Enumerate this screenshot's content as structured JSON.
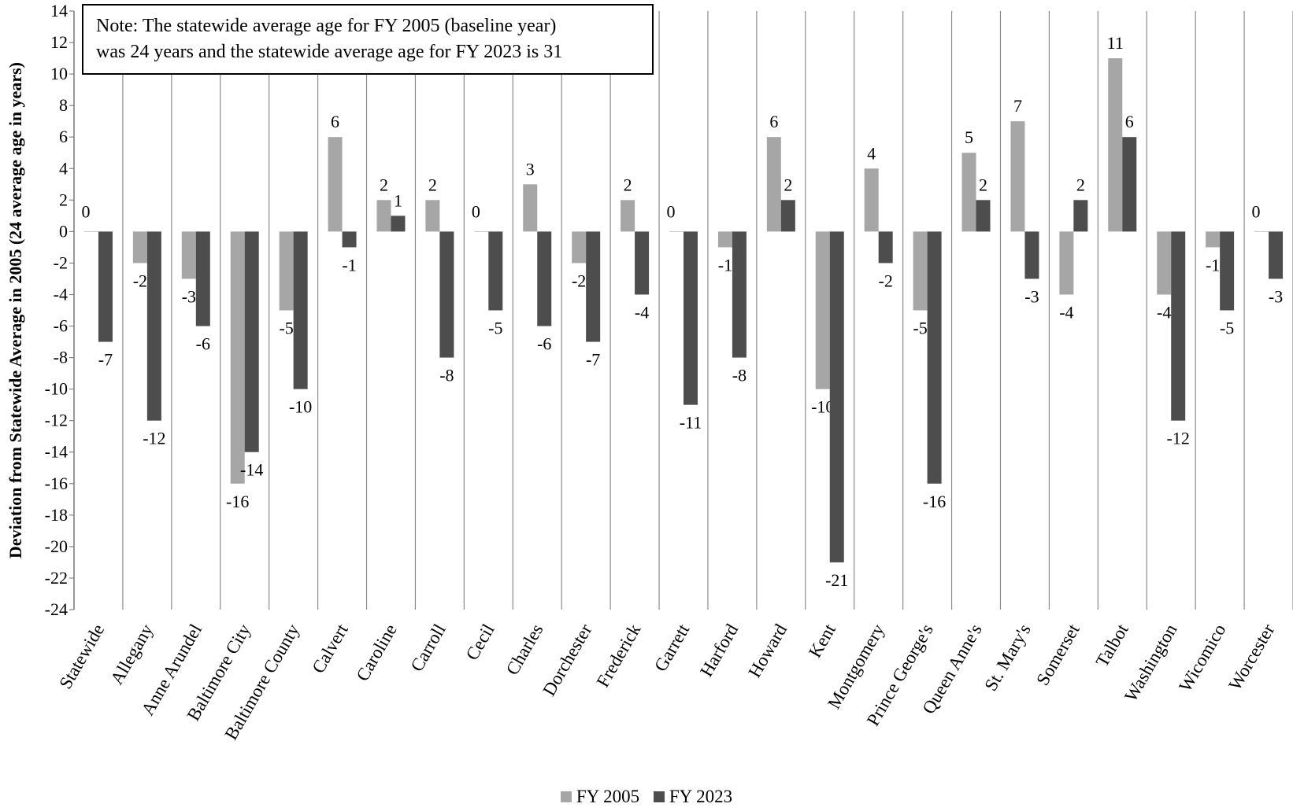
{
  "chart_data": {
    "type": "bar",
    "title": "",
    "xlabel": "",
    "ylabel": "Deviation from Statewide Average in 2005 (24 average age in years)",
    "ylim": [
      -24,
      14
    ],
    "y_ticks": [
      14,
      12,
      10,
      8,
      6,
      4,
      2,
      0,
      -2,
      -4,
      -6,
      -8,
      -10,
      -12,
      -14,
      -16,
      -18,
      -20,
      -22,
      -24
    ],
    "grid": "vertical category separators",
    "legend_position": "bottom",
    "categories": [
      "Statewide",
      "Allegany",
      "Anne Arundel",
      "Baltimore City",
      "Baltimore County",
      "Calvert",
      "Caroline",
      "Carroll",
      "Cecil",
      "Charles",
      "Dorchester",
      "Frederick",
      "Garrett",
      "Harford",
      "Howard",
      "Kent",
      "Montgomery",
      "Prince George's",
      "Queen Anne's",
      "St. Mary's",
      "Somerset",
      "Talbot",
      "Washington",
      "Wicomico",
      "Worcester"
    ],
    "series": [
      {
        "name": "FY 2005",
        "color": "#a6a6a6",
        "values": [
          0,
          -2,
          -3,
          -16,
          -5,
          6,
          2,
          2,
          0,
          3,
          -2,
          2,
          0,
          -1,
          6,
          -10,
          4,
          -5,
          5,
          7,
          -4,
          11,
          -4,
          -1,
          0
        ]
      },
      {
        "name": "FY 2023",
        "color": "#4d4d4d",
        "values": [
          -7,
          -12,
          -6,
          -14,
          -10,
          -1,
          1,
          -8,
          -5,
          -6,
          -7,
          -4,
          -11,
          -8,
          2,
          -21,
          -2,
          -16,
          2,
          -3,
          2,
          6,
          -12,
          -5,
          -3
        ]
      }
    ],
    "annotation": {
      "line1": "Note: The statewide average age for FY 2005 (baseline year)",
      "line2": "was 24 years and the statewide average age for FY 2023 is 31"
    }
  }
}
